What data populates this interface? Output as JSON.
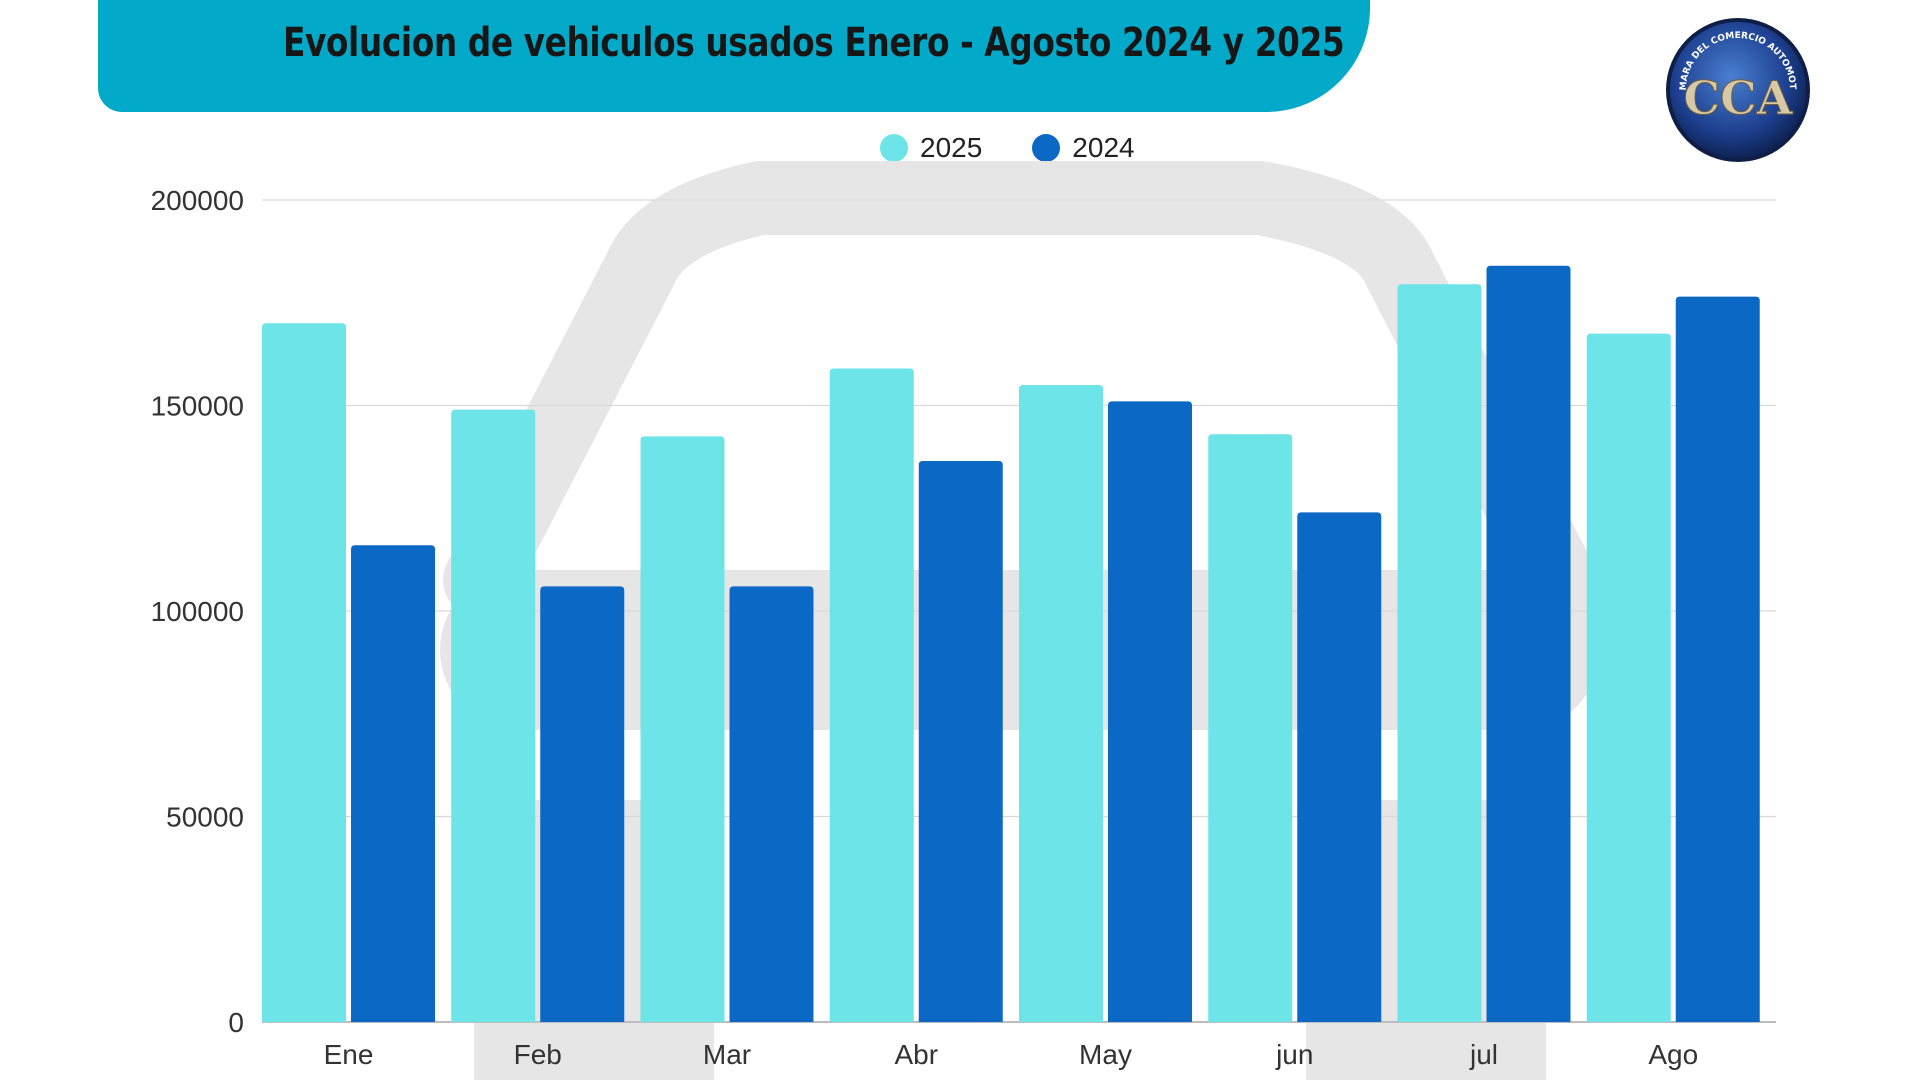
{
  "header": {
    "title": "Evolucion de vehiculos usados Enero - Agosto 2024 y 2025",
    "logo_text": "CAMARA DEL COMERCIO AUTOMOTOR",
    "logo_letters": "CCA"
  },
  "colors": {
    "banner": "#03a9c9",
    "series_2025": "#6ce4e8",
    "series_2024": "#0b68c4",
    "grid": "#d9d9d9",
    "watermark": "#e6e6e6"
  },
  "chart_data": {
    "type": "bar",
    "title": "Evolucion de vehiculos usados Enero - Agosto 2024 y 2025",
    "xlabel": "",
    "ylabel": "",
    "categories": [
      "Ene",
      "Feb",
      "Mar",
      "Abr",
      "May",
      "jun",
      "jul",
      "Ago"
    ],
    "series": [
      {
        "name": "2025",
        "values": [
          170000,
          149000,
          142500,
          159000,
          155000,
          143000,
          179500,
          167500
        ]
      },
      {
        "name": "2024",
        "values": [
          116000,
          106000,
          106000,
          136500,
          151000,
          124000,
          184000,
          176500
        ]
      }
    ],
    "ylim": [
      0,
      200000
    ],
    "yticks": [
      "0",
      "50000",
      "100000",
      "150000",
      "200000"
    ],
    "ytick_values": [
      0,
      50000,
      100000,
      150000,
      200000
    ],
    "grid": true,
    "legend": "top-center"
  }
}
